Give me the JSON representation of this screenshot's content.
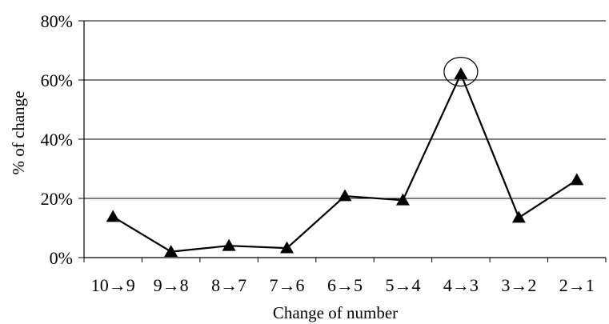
{
  "chart_data": {
    "type": "line",
    "title": "",
    "xlabel": "Change of number",
    "ylabel": "% of change",
    "categories": [
      "10→9",
      "9→8",
      "8→7",
      "7→6",
      "6→5",
      "5→4",
      "4→3",
      "3→2",
      "2→1"
    ],
    "series": [
      {
        "values": [
          13.8,
          2.0,
          4.0,
          3.2,
          20.8,
          19.4,
          62.0,
          13.5,
          26.2
        ]
      }
    ],
    "ylim": [
      0,
      80
    ],
    "yticks": [
      "0%",
      "20%",
      "40%",
      "60%",
      "80%"
    ],
    "grid": "horizontal",
    "highlight": {
      "category": "4→3",
      "marker": "circle"
    },
    "colors": {
      "line": "#000000",
      "marker": "#000000",
      "grid": "#000000"
    }
  }
}
